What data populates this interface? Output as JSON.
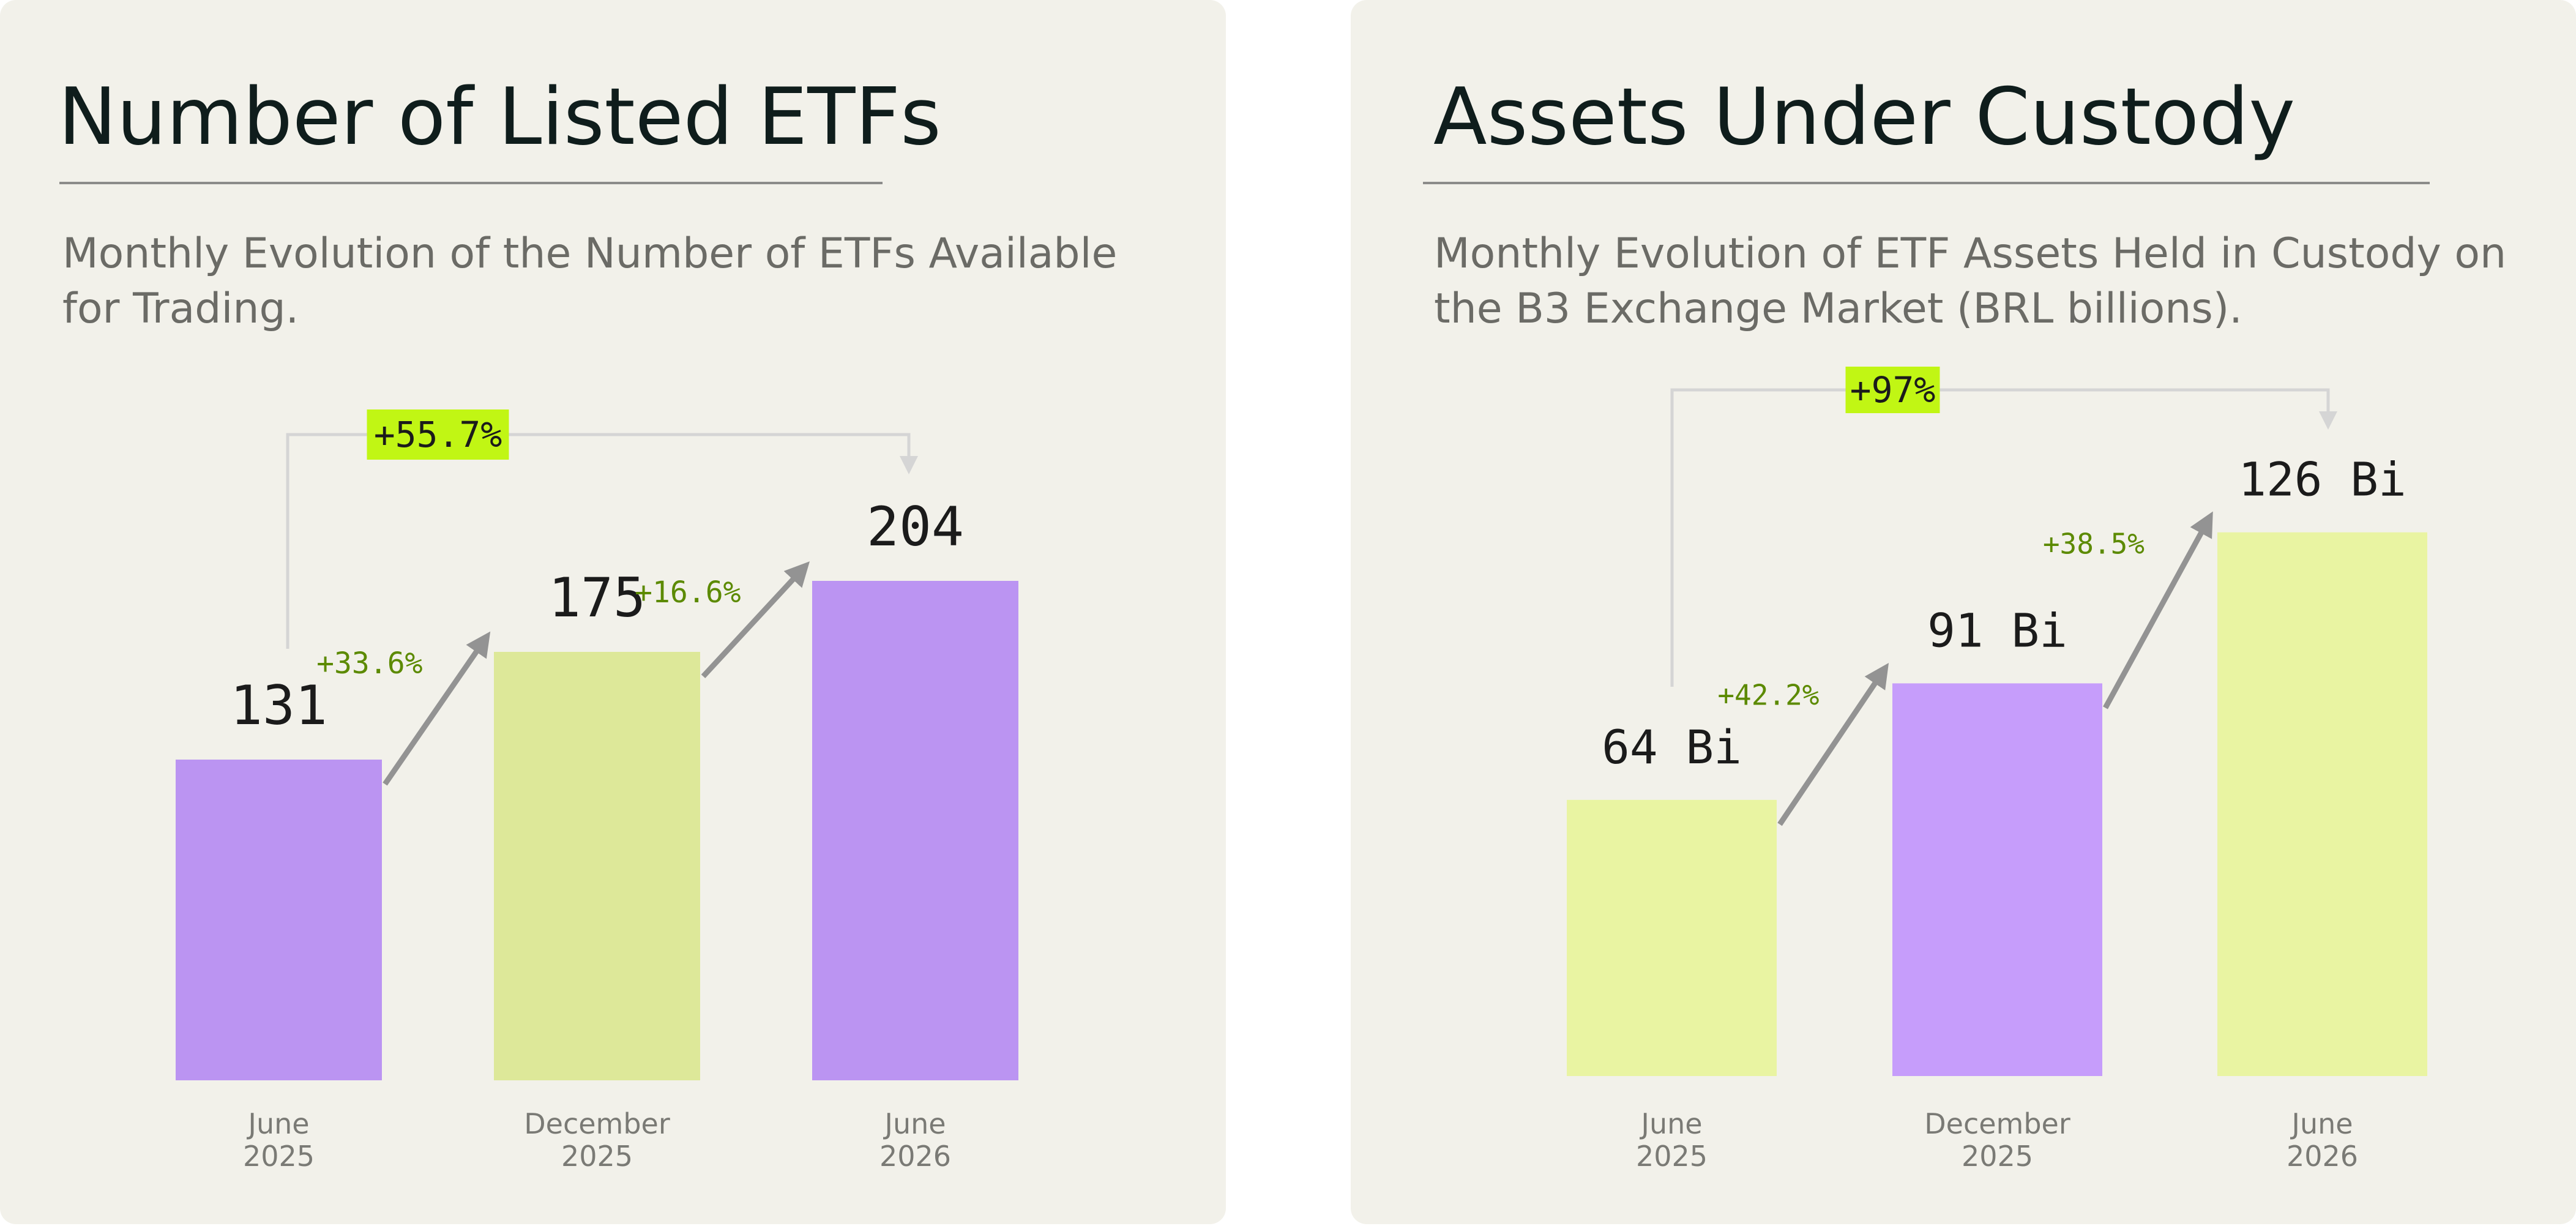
{
  "colors": {
    "panel_bg": "#f2f1ea",
    "purple": "#bb94f2",
    "purple_light": "#c69dfb",
    "lime": "#dde899",
    "lime_light": "#e9f4a2",
    "highlight": "#c1f614",
    "growth_text": "#5c8a00",
    "arrow": "#939393",
    "bracket": "#d5d5d5"
  },
  "chart_data": [
    {
      "type": "bar",
      "title": "Number of Listed ETFs",
      "subtitle": "Monthly Evolution of the Number of ETFs Available for Trading.",
      "categories": [
        [
          "June",
          "2025"
        ],
        [
          "December",
          "2025"
        ],
        [
          "June",
          "2026"
        ]
      ],
      "values": [
        131,
        175,
        204
      ],
      "value_labels": [
        "131",
        "175",
        "204"
      ],
      "growth_labels": [
        "+33.6%",
        "+16.6%"
      ],
      "total_growth_label": "+55.7%",
      "bar_colors": [
        "#bb94f2",
        "#dde899",
        "#bb94f2"
      ],
      "grid": false,
      "legend": "none"
    },
    {
      "type": "bar",
      "title": "Assets Under Custody",
      "subtitle": "Monthly Evolution of ETF Assets Held in Custody on the B3 Exchange Market (BRL billions).",
      "categories": [
        [
          "June",
          "2025"
        ],
        [
          "December",
          "2025"
        ],
        [
          "June",
          "2026"
        ]
      ],
      "values": [
        64,
        91,
        126
      ],
      "value_labels": [
        "64 Bi",
        "91 Bi",
        "126 Bi"
      ],
      "growth_labels": [
        "+42.2%",
        "+38.5%"
      ],
      "total_growth_label": "+97%",
      "bar_colors": [
        "#e9f4a2",
        "#c69dfb",
        "#e9f4a2"
      ],
      "grid": false,
      "legend": "none"
    }
  ]
}
